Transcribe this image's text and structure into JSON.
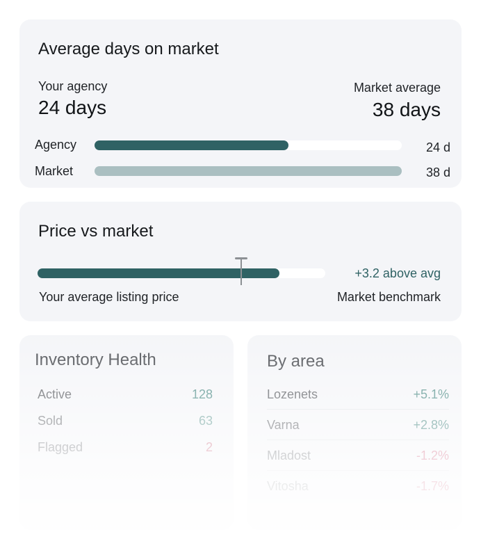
{
  "days_card": {
    "title": "Average days on market",
    "agency_label": "Your agency",
    "agency_value": "24 days",
    "market_label": "Market average",
    "market_value": "38 days",
    "bars": [
      {
        "label": "Agency",
        "value_text": "24 d",
        "days": 24,
        "color": "#2f6264"
      },
      {
        "label": "Market",
        "value_text": "38 d",
        "days": 38,
        "color": "#aabfc1"
      }
    ]
  },
  "price_card": {
    "title": "Price vs market",
    "delta_text": "+3.2 above avg",
    "left_caption": "Your average listing price",
    "right_caption": "Market benchmark",
    "bar_color": "#2f6264",
    "delta_color": "#2f6264"
  },
  "inventory": {
    "title": "Inventory Health",
    "rows": [
      {
        "label": "Active",
        "value": "128",
        "color": "#4b8a85"
      },
      {
        "label": "Sold",
        "value": "63",
        "color": "#6a9e99"
      },
      {
        "label": "Flagged",
        "value": "2",
        "color": "#d07b8e"
      }
    ]
  },
  "areas": {
    "title": "By area",
    "rows": [
      {
        "label": "Lozenets",
        "value": "+5.1%",
        "color": "#4b8a85"
      },
      {
        "label": "Varna",
        "value": "+2.8%",
        "color": "#4b8a85"
      },
      {
        "label": "Mladost",
        "value": "-1.2%",
        "color": "#d4708a"
      },
      {
        "label": "Vitosha",
        "value": "-1.7%",
        "color": "#d4708a"
      }
    ]
  }
}
